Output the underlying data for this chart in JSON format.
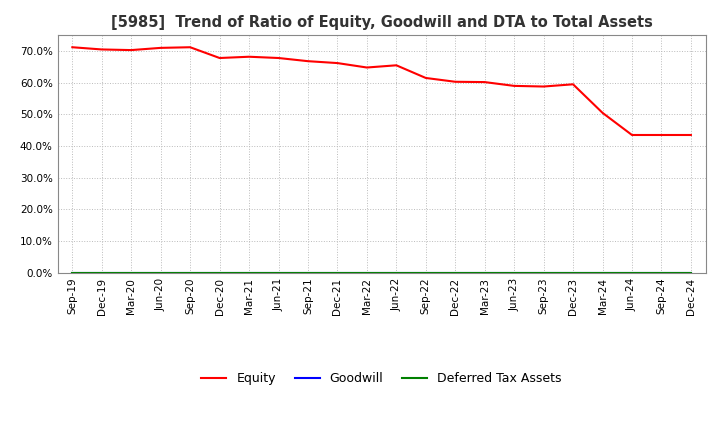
{
  "title": "[5985]  Trend of Ratio of Equity, Goodwill and DTA to Total Assets",
  "x_labels": [
    "Sep-19",
    "Dec-19",
    "Mar-20",
    "Jun-20",
    "Sep-20",
    "Dec-20",
    "Mar-21",
    "Jun-21",
    "Sep-21",
    "Dec-21",
    "Mar-22",
    "Jun-22",
    "Sep-22",
    "Dec-22",
    "Mar-23",
    "Jun-23",
    "Sep-23",
    "Dec-23",
    "Mar-24",
    "Jun-24",
    "Sep-24",
    "Dec-24"
  ],
  "equity": [
    71.2,
    70.5,
    70.3,
    71.0,
    71.2,
    67.8,
    68.2,
    67.8,
    66.8,
    66.2,
    64.8,
    65.5,
    61.5,
    60.3,
    60.2,
    59.0,
    58.8,
    59.5,
    50.5,
    43.5,
    43.5,
    43.5
  ],
  "goodwill": [
    0,
    0,
    0,
    0,
    0,
    0,
    0,
    0,
    0,
    0,
    0,
    0,
    0,
    0,
    0,
    0,
    0,
    0,
    0,
    0,
    0,
    0
  ],
  "dta": [
    0,
    0,
    0,
    0,
    0,
    0,
    0,
    0,
    0,
    0,
    0,
    0,
    0,
    0,
    0,
    0,
    0,
    0,
    0,
    0,
    0,
    0
  ],
  "equity_color": "#FF0000",
  "goodwill_color": "#0000FF",
  "dta_color": "#008000",
  "ylim": [
    0,
    75
  ],
  "yticks": [
    0,
    10,
    20,
    30,
    40,
    50,
    60,
    70
  ],
  "background_color": "#FFFFFF",
  "plot_bg_color": "#FFFFFF",
  "grid_color": "#BBBBBB",
  "legend_labels": [
    "Equity",
    "Goodwill",
    "Deferred Tax Assets"
  ],
  "title_fontsize": 10.5,
  "tick_fontsize": 7.5,
  "legend_fontsize": 9
}
